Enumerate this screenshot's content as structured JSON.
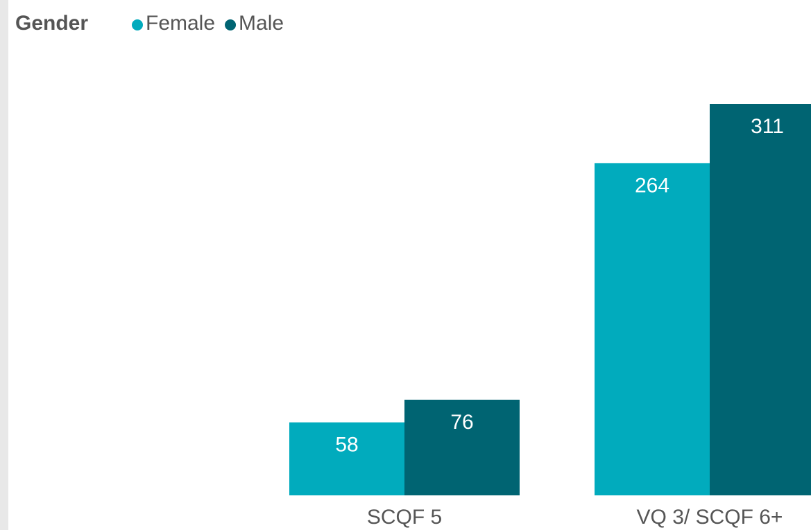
{
  "chart_data": {
    "type": "bar",
    "legend_title": "Gender",
    "categories": [
      "SCQF 5",
      "VQ 3/ SCQF 6+"
    ],
    "series": [
      {
        "name": "Female",
        "color": "#01abbd",
        "values": [
          58,
          264
        ]
      },
      {
        "name": "Male",
        "color": "#006472",
        "values": [
          76,
          311
        ]
      }
    ],
    "ylim": [
      0,
      311
    ],
    "legend_position": "top-left"
  }
}
